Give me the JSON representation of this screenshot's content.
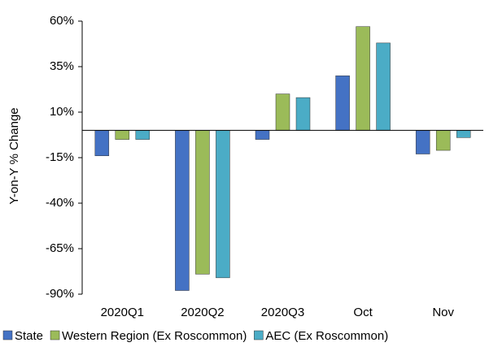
{
  "chart_data": {
    "type": "bar",
    "y_label": "Y-on-Y  % Change",
    "categories": [
      "2020Q1",
      "2020Q2",
      "2020Q3",
      "Oct",
      "Nov"
    ],
    "series": [
      {
        "name": "State",
        "color": "#4472c4",
        "values": [
          -14,
          -88,
          -5,
          30,
          -13
        ]
      },
      {
        "name": "Western Region (Ex Roscommon)",
        "color": "#9bbb59",
        "values": [
          -5,
          -79,
          20,
          57,
          -11
        ]
      },
      {
        "name": "AEC (Ex Roscommon)",
        "color": "#4bacc6",
        "values": [
          -5,
          -81,
          18,
          48,
          -4
        ]
      }
    ],
    "ylim": [
      -90,
      60
    ],
    "yticks": [
      {
        "value": -90,
        "label": "-90%"
      },
      {
        "value": -65,
        "label": "-65%"
      },
      {
        "value": -40,
        "label": "-40%"
      },
      {
        "value": -15,
        "label": "-15%"
      },
      {
        "value": 10,
        "label": "10%"
      },
      {
        "value": 35,
        "label": "35%"
      },
      {
        "value": 60,
        "label": "60%"
      }
    ],
    "grid": false,
    "legend": "bottom"
  }
}
